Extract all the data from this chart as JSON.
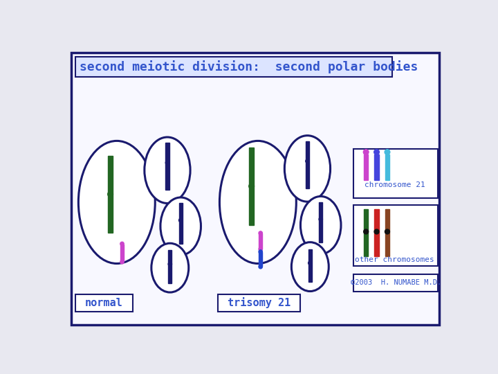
{
  "title": "second meiotic division:  second polar bodies",
  "title_color": "#3355cc",
  "bg_color": "#f0f0ff",
  "border_color": "#1a1a6e",
  "label_normal": "normal",
  "label_trisomy": "trisomy 21",
  "label_chr21": "chromosome 21",
  "label_other": "other chromosomes",
  "label_copyright": "©2003  H. NUMABE M.D.",
  "label_color": "#3355cc",
  "chr21_colors": [
    "#cc44cc",
    "#4444dd",
    "#44bbdd"
  ],
  "other_chr_colors": [
    "#226622",
    "#cc2222",
    "#884422"
  ],
  "dark_navy": "#1a1a6e",
  "green_chr": "#226622",
  "magenta_chr": "#cc44cc",
  "blue_chr": "#2244cc"
}
